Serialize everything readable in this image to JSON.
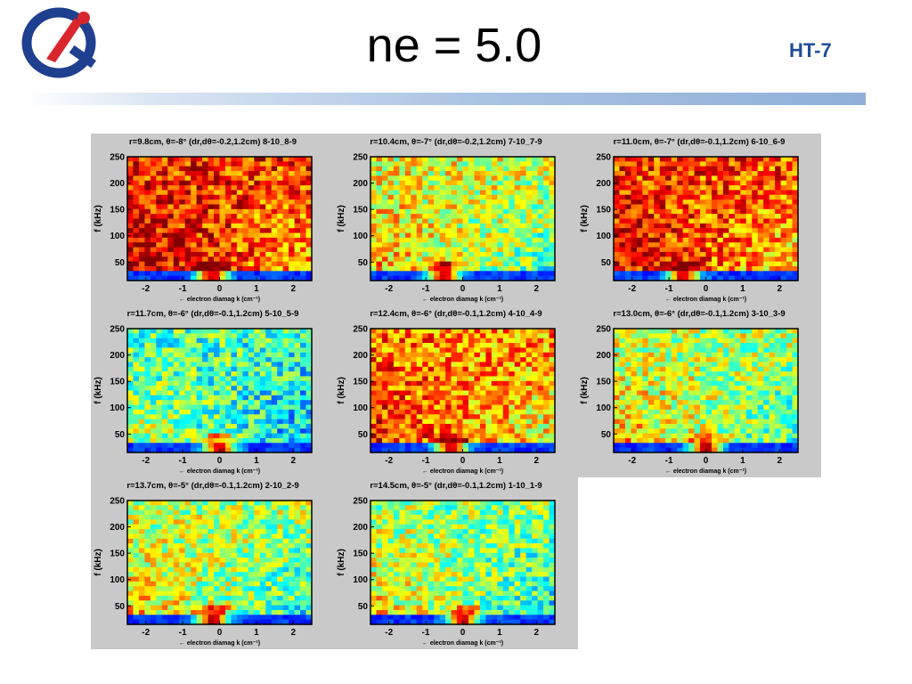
{
  "slide": {
    "title": "ne = 5.0",
    "org_label": "HT-7",
    "logo_icon": "ht7-logo-icon",
    "colors": {
      "title_text": "#000000",
      "org_label": "#1f4e96",
      "header_bar": "#8fb0d8",
      "figure_background": "#c9c9c9"
    }
  },
  "chart_data": [
    {
      "type": "heatmap",
      "title": "r=9.8cm, θ=-8° (dr,dθ=-0.2,1.2cm) 8-10_8-9",
      "xlabel": "← electron diamag k (cm⁻¹)",
      "ylabel": "f (kHz)",
      "xticks": [
        "-2",
        "-1",
        "0",
        "1",
        "2"
      ],
      "yticks": [
        "50",
        "100",
        "150",
        "200",
        "250"
      ],
      "xlim": [
        -2.5,
        2.5
      ],
      "ylim": [
        15,
        250
      ],
      "colormap": "jet",
      "grid": false,
      "avg_level": 0.84,
      "peak_k": -0.2
    },
    {
      "type": "heatmap",
      "title": "r=10.4cm, θ=-7° (dr,dθ=-0.2,1.2cm) 7-10_7-9",
      "xlabel": "← electron diamag k (cm⁻¹)",
      "ylabel": "f (kHz)",
      "xticks": [
        "-2",
        "-1",
        "0",
        "1",
        "2"
      ],
      "yticks": [
        "50",
        "100",
        "150",
        "200",
        "250"
      ],
      "xlim": [
        -2.5,
        2.5
      ],
      "ylim": [
        15,
        250
      ],
      "colormap": "jet",
      "grid": false,
      "avg_level": 0.6,
      "peak_k": -0.5
    },
    {
      "type": "heatmap",
      "title": "r=11.0cm, θ=-7° (dr,dθ=-0.1,1.2cm) 6-10_6-9",
      "xlabel": "← electron diamag k (cm⁻¹)",
      "ylabel": "f (kHz)",
      "xticks": [
        "-2",
        "-1",
        "0",
        "1",
        "2"
      ],
      "yticks": [
        "50",
        "100",
        "150",
        "200",
        "250"
      ],
      "xlim": [
        -2.5,
        2.5
      ],
      "ylim": [
        15,
        250
      ],
      "colormap": "jet",
      "grid": false,
      "avg_level": 0.82,
      "peak_k": -0.6
    },
    {
      "type": "heatmap",
      "title": "r=11.7cm, θ=-6° (dr,dθ=-0.1,1.2cm) 5-10_5-9",
      "xlabel": "← electron diamag k (cm⁻¹)",
      "ylabel": "f (kHz)",
      "xticks": [
        "-2",
        "-1",
        "0",
        "1",
        "2"
      ],
      "yticks": [
        "50",
        "100",
        "150",
        "200",
        "250"
      ],
      "xlim": [
        -2.5,
        2.5
      ],
      "ylim": [
        15,
        250
      ],
      "colormap": "jet",
      "grid": false,
      "avg_level": 0.44,
      "peak_k": 0.0
    },
    {
      "type": "heatmap",
      "title": "r=12.4cm, θ=-6° (dr,dθ=-0.1,1.2cm) 4-10_4-9",
      "xlabel": "← electron diamag k (cm⁻¹)",
      "ylabel": "f (kHz)",
      "xticks": [
        "-2",
        "-1",
        "0",
        "1",
        "2"
      ],
      "yticks": [
        "50",
        "100",
        "150",
        "200",
        "250"
      ],
      "xlim": [
        -2.5,
        2.5
      ],
      "ylim": [
        15,
        250
      ],
      "colormap": "jet",
      "grid": false,
      "avg_level": 0.75,
      "peak_k": -0.3
    },
    {
      "type": "heatmap",
      "title": "r=13.0cm, θ=-6° (dr,dθ=-0.1,1.2cm) 3-10_3-9",
      "xlabel": "← electron diamag k (cm⁻¹)",
      "ylabel": "f (kHz)",
      "xticks": [
        "-2",
        "-1",
        "0",
        "1",
        "2"
      ],
      "yticks": [
        "50",
        "100",
        "150",
        "200",
        "250"
      ],
      "xlim": [
        -2.5,
        2.5
      ],
      "ylim": [
        15,
        250
      ],
      "colormap": "jet",
      "grid": false,
      "avg_level": 0.56,
      "peak_k": 0.0
    },
    {
      "type": "heatmap",
      "title": "r=13.7cm, θ=-5° (dr,dθ=-0.1,1.2cm) 2-10_2-9",
      "xlabel": "← electron diamag k (cm⁻¹)",
      "ylabel": "f (kHz)",
      "xticks": [
        "-2",
        "-1",
        "0",
        "1",
        "2"
      ],
      "yticks": [
        "50",
        "100",
        "150",
        "200",
        "250"
      ],
      "xlim": [
        -2.5,
        2.5
      ],
      "ylim": [
        15,
        250
      ],
      "colormap": "jet",
      "grid": false,
      "avg_level": 0.55,
      "peak_k": -0.2
    },
    {
      "type": "heatmap",
      "title": "r=14.5cm, θ=-5° (dr,dθ=-0.1,1.2cm) 1-10_1-9",
      "xlabel": "← electron diamag k (cm⁻¹)",
      "ylabel": "f (kHz)",
      "xticks": [
        "-2",
        "-1",
        "0",
        "1",
        "2"
      ],
      "yticks": [
        "50",
        "100",
        "150",
        "200",
        "250"
      ],
      "xlim": [
        -2.5,
        2.5
      ],
      "ylim": [
        15,
        250
      ],
      "colormap": "jet",
      "grid": false,
      "avg_level": 0.52,
      "peak_k": 0.0
    }
  ]
}
